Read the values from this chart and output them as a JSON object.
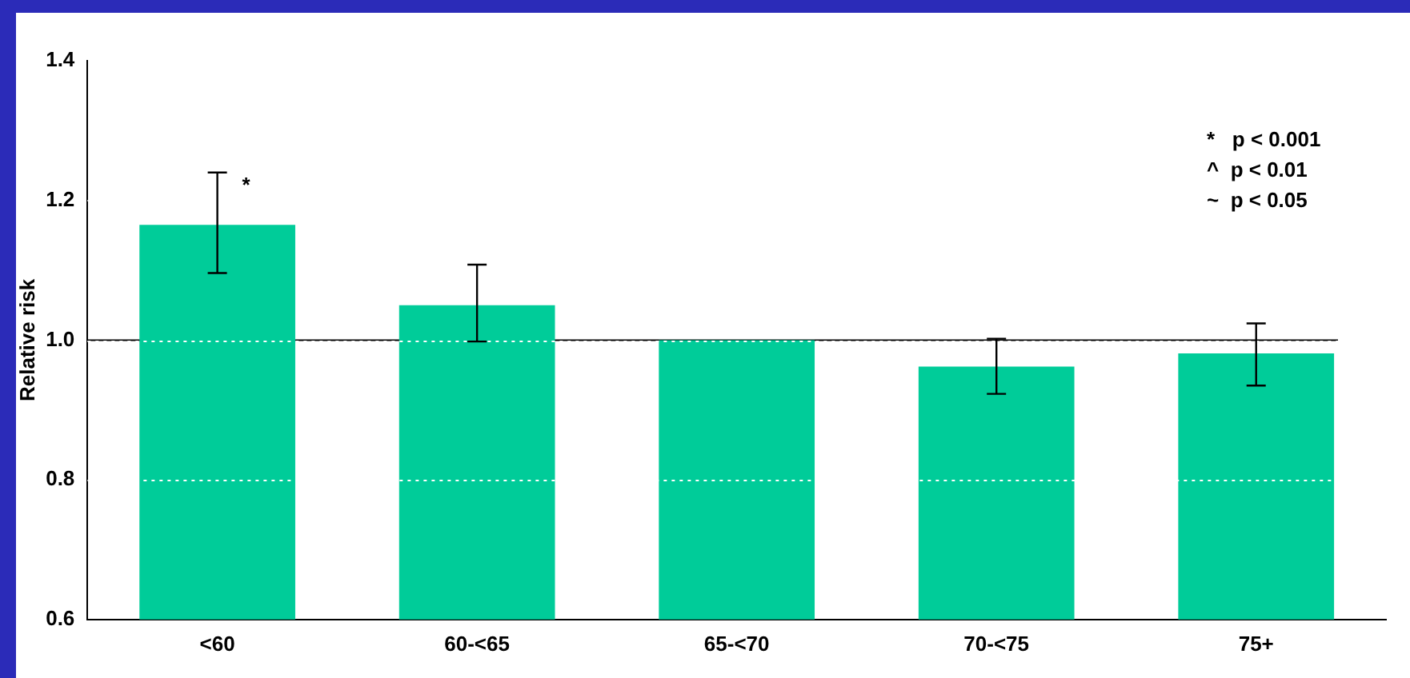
{
  "chart_data": {
    "type": "bar",
    "ylabel": "Relative risk",
    "categories": [
      "<60",
      "60-<65",
      "65-<70",
      "70-<75",
      "75+"
    ],
    "values": [
      1.165,
      1.05,
      1.0,
      0.962,
      0.981
    ],
    "errors": [
      [
        1.096,
        1.24
      ],
      [
        0.998,
        1.108
      ],
      null,
      [
        0.923,
        1.002
      ],
      [
        0.935,
        1.024
      ]
    ],
    "color": "#00cc99",
    "ylim": [
      0.6,
      1.4
    ],
    "yticks": [
      {
        "value": 0.6,
        "label": "0.6"
      },
      {
        "value": 0.8,
        "label": "0.8"
      },
      {
        "value": 1.0,
        "label": "1.0"
      },
      {
        "value": 1.2,
        "label": "1.2"
      },
      {
        "value": 1.4,
        "label": "1.4"
      }
    ],
    "grid": "y",
    "ref_lines": [
      {
        "axis": "y",
        "value": 1.0,
        "color": "#000000"
      }
    ],
    "annotations": [
      {
        "text": "*",
        "x": "<60",
        "y": 1.22
      },
      "*   p < 0.001",
      "^  p < 0.01",
      "~  p < 0.05"
    ]
  }
}
